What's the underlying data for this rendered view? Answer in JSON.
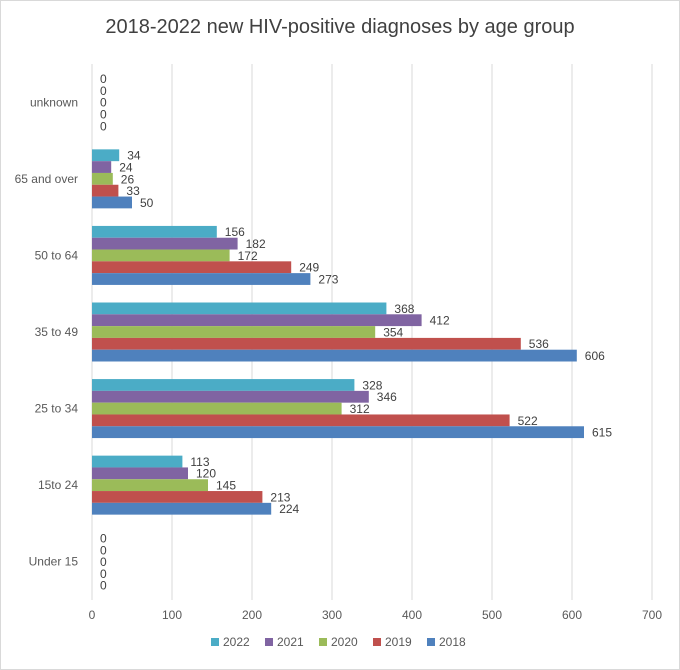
{
  "chart_data": {
    "type": "bar",
    "orientation": "horizontal",
    "title": "2018-2022 new HIV-positive diagnoses by age group",
    "categories": [
      "unknown",
      "65 and over",
      "50 to 64",
      "35 to 49",
      "25 to 34",
      "15to 24",
      "Under 15"
    ],
    "series": [
      {
        "name": "2022",
        "color": "#4BACC6",
        "values": [
          0,
          34,
          156,
          368,
          328,
          113,
          0
        ]
      },
      {
        "name": "2021",
        "color": "#8064A2",
        "values": [
          0,
          24,
          182,
          412,
          346,
          120,
          0
        ]
      },
      {
        "name": "2020",
        "color": "#9BBB59",
        "values": [
          0,
          26,
          172,
          354,
          312,
          145,
          0
        ]
      },
      {
        "name": "2019",
        "color": "#C0504D",
        "values": [
          0,
          33,
          249,
          536,
          522,
          213,
          0
        ]
      },
      {
        "name": "2018",
        "color": "#4F81BD",
        "values": [
          0,
          50,
          273,
          606,
          615,
          224,
          0
        ]
      }
    ],
    "xlim": [
      0,
      700
    ],
    "xticks": [
      0,
      100,
      200,
      300,
      400,
      500,
      600,
      700
    ],
    "grid": true,
    "legend_position": "bottom"
  }
}
